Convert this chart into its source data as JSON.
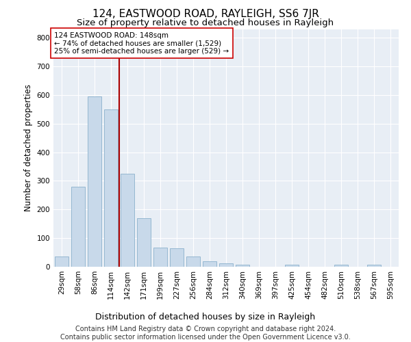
{
  "title": "124, EASTWOOD ROAD, RAYLEIGH, SS6 7JR",
  "subtitle": "Size of property relative to detached houses in Rayleigh",
  "xlabel": "Distribution of detached houses by size in Rayleigh",
  "ylabel": "Number of detached properties",
  "bar_labels": [
    "29sqm",
    "58sqm",
    "86sqm",
    "114sqm",
    "142sqm",
    "171sqm",
    "199sqm",
    "227sqm",
    "256sqm",
    "284sqm",
    "312sqm",
    "340sqm",
    "369sqm",
    "397sqm",
    "425sqm",
    "454sqm",
    "482sqm",
    "510sqm",
    "538sqm",
    "567sqm",
    "595sqm"
  ],
  "bar_values": [
    35,
    280,
    595,
    550,
    325,
    170,
    68,
    65,
    35,
    20,
    12,
    8,
    0,
    0,
    8,
    0,
    0,
    8,
    0,
    8,
    0
  ],
  "bar_color": "#c8d9ea",
  "bar_edgecolor": "#8ab0cc",
  "vline_x_index": 4,
  "vline_color": "#aa0000",
  "annotation_text": "124 EASTWOOD ROAD: 148sqm\n← 74% of detached houses are smaller (1,529)\n25% of semi-detached houses are larger (529) →",
  "annotation_box_facecolor": "white",
  "annotation_box_edgecolor": "#cc0000",
  "ylim": [
    0,
    830
  ],
  "yticks": [
    0,
    100,
    200,
    300,
    400,
    500,
    600,
    700,
    800
  ],
  "bg_color": "#ffffff",
  "plot_bg_color": "#e8eef5",
  "grid_color": "#ffffff",
  "title_fontsize": 11,
  "subtitle_fontsize": 9.5,
  "ylabel_fontsize": 8.5,
  "xlabel_fontsize": 9,
  "tick_fontsize": 7.5,
  "annotation_fontsize": 7.5,
  "footer_fontsize": 7,
  "footer": "Contains HM Land Registry data © Crown copyright and database right 2024.\nContains public sector information licensed under the Open Government Licence v3.0."
}
